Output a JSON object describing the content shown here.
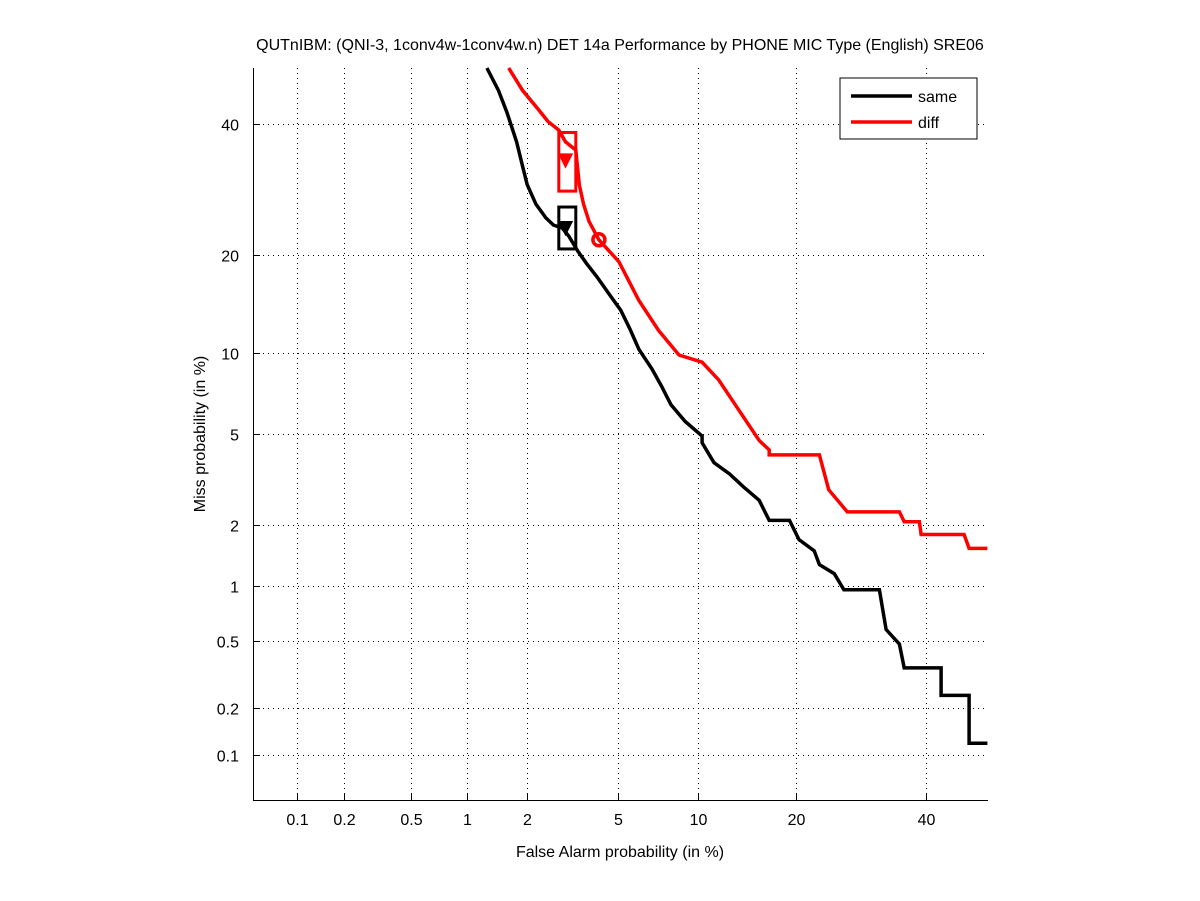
{
  "chart_data": {
    "type": "line",
    "title": "QUTnIBM: (QNI-3, 1conv4w-1conv4w.n) DET 14a Performance by PHONE MIC Type (English) SRE06",
    "xlabel": "False Alarm probability (in %)",
    "ylabel": "Miss probability (in %)",
    "xscale": "normal-deviate",
    "yscale": "normal-deviate",
    "xlim": [
      0.05,
      51
    ],
    "ylim": [
      0.05,
      50
    ],
    "xticks": [
      0.1,
      0.2,
      0.5,
      1,
      2,
      5,
      10,
      20,
      40
    ],
    "xtick_labels": [
      "0.1",
      "0.2",
      "0.5",
      "1",
      "2",
      "5",
      "10",
      "20",
      "40"
    ],
    "yticks": [
      0.1,
      0.2,
      0.5,
      1,
      2,
      5,
      10,
      20,
      40
    ],
    "ytick_labels": [
      "0.1",
      "0.2",
      "0.5",
      "1",
      "2",
      "5",
      "10",
      "20",
      "40"
    ],
    "grid": true,
    "legend_position": "top-right",
    "series": [
      {
        "name": "same",
        "color": "#000000",
        "points": [
          [
            1.27,
            50
          ],
          [
            1.45,
            46
          ],
          [
            1.6,
            42
          ],
          [
            1.78,
            37
          ],
          [
            1.9,
            33
          ],
          [
            2.0,
            30
          ],
          [
            2.2,
            27
          ],
          [
            2.45,
            25
          ],
          [
            2.65,
            24
          ],
          [
            2.9,
            23.6
          ],
          [
            3.1,
            22.5
          ],
          [
            3.4,
            20.5
          ],
          [
            3.7,
            19
          ],
          [
            4.1,
            17.4
          ],
          [
            4.6,
            15.5
          ],
          [
            5.14,
            13.8
          ],
          [
            5.6,
            12
          ],
          [
            6.06,
            10.3
          ],
          [
            6.8,
            8.8
          ],
          [
            7.4,
            7.6
          ],
          [
            8.0,
            6.5
          ],
          [
            9.0,
            5.6
          ],
          [
            10.3,
            4.9
          ],
          [
            10.3,
            4.6
          ],
          [
            11.3,
            3.8
          ],
          [
            12.7,
            3.4
          ],
          [
            14.0,
            3.0
          ],
          [
            15.7,
            2.6
          ],
          [
            16.8,
            2.1
          ],
          [
            19.2,
            2.1
          ],
          [
            20.4,
            1.7
          ],
          [
            22.4,
            1.5
          ],
          [
            23.1,
            1.28
          ],
          [
            25.2,
            1.15
          ],
          [
            26.6,
            0.95
          ],
          [
            32.1,
            0.95
          ],
          [
            33.2,
            0.58
          ],
          [
            35.4,
            0.48
          ],
          [
            36.2,
            0.35
          ],
          [
            42.6,
            0.35
          ],
          [
            42.6,
            0.24
          ],
          [
            47.6,
            0.24
          ],
          [
            47.6,
            0.12
          ],
          [
            50.9,
            0.12
          ]
        ],
        "operating_point": {
          "fa": 3.0,
          "miss": 23.6
        },
        "confidence_box": {
          "fa": [
            2.8,
            3.33
          ],
          "miss": [
            20.8,
            26.6
          ]
        }
      },
      {
        "name": "diff",
        "color": "#ff0000",
        "points": [
          [
            1.63,
            50
          ],
          [
            1.9,
            46
          ],
          [
            2.27,
            42.5
          ],
          [
            2.5,
            40.5
          ],
          [
            2.8,
            39.0
          ],
          [
            3.0,
            37
          ],
          [
            3.33,
            35.6
          ],
          [
            3.45,
            30
          ],
          [
            3.6,
            27
          ],
          [
            3.8,
            24.5
          ],
          [
            4.18,
            22.0
          ],
          [
            5.05,
            19.2
          ],
          [
            6.06,
            14.8
          ],
          [
            7.2,
            11.9
          ],
          [
            8.55,
            9.85
          ],
          [
            10.3,
            9.3
          ],
          [
            11.7,
            8.05
          ],
          [
            13.6,
            6.2
          ],
          [
            15.7,
            4.7
          ],
          [
            16.8,
            4.3
          ],
          [
            16.8,
            4.1
          ],
          [
            23.1,
            4.1
          ],
          [
            24.4,
            2.9
          ],
          [
            27.1,
            2.3
          ],
          [
            35.4,
            2.3
          ],
          [
            36.2,
            2.07
          ],
          [
            38.8,
            2.07
          ],
          [
            39.1,
            1.8
          ],
          [
            46.7,
            1.8
          ],
          [
            47.6,
            1.54
          ],
          [
            50.9,
            1.54
          ]
        ],
        "operating_point": {
          "fa": 3.0,
          "miss": 33.9
        },
        "min_dcf_point": {
          "fa": 4.18,
          "miss": 22.0
        },
        "confidence_box": {
          "fa": [
            2.8,
            3.33
          ],
          "miss": [
            29.0,
            38.6
          ]
        }
      }
    ]
  }
}
